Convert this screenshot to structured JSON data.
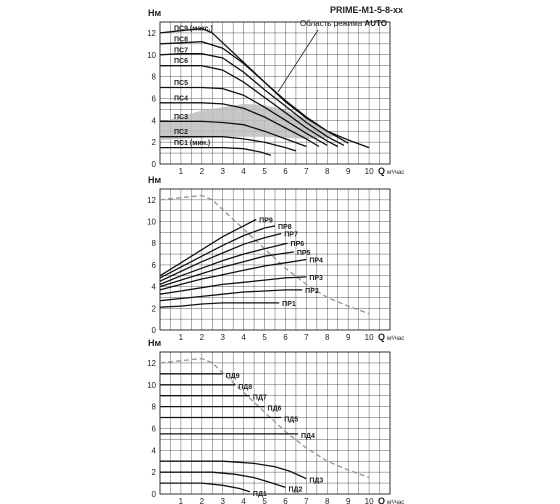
{
  "header": {
    "model": "PRIME-M1-5-8-xx",
    "mode_text": "Область режима ",
    "mode_word": "AUTO"
  },
  "chart_data": [
    {
      "type": "line",
      "ylabel": "Hм",
      "xlabel": "Q",
      "xunit": "м³/час",
      "xlim": [
        0,
        11
      ],
      "ylim": [
        0,
        13
      ],
      "xticks": [
        1,
        2,
        3,
        4,
        5,
        6,
        7,
        8,
        9,
        10
      ],
      "yticks": [
        0,
        2,
        4,
        6,
        8,
        10,
        12
      ],
      "grid": true,
      "max_curve": {
        "x": [
          0,
          1,
          2,
          2.5,
          3,
          4,
          5,
          6,
          7,
          8,
          9,
          10
        ],
        "y": [
          12,
          12.2,
          12.4,
          12,
          11.1,
          9.3,
          7.5,
          5.7,
          4.2,
          3.0,
          2.2,
          1.5
        ]
      },
      "auto_region": {
        "upper": {
          "x": [
            0,
            2,
            3,
            4,
            5,
            6,
            7,
            8,
            8.5
          ],
          "y": [
            3.8,
            4.9,
            5.2,
            5.5,
            5.4,
            4.9,
            4.2,
            3.1,
            2.6
          ]
        },
        "lower": {
          "x": [
            0,
            2,
            3,
            4,
            5,
            6,
            7,
            8,
            8.5
          ],
          "y": [
            2.2,
            2.4,
            2.5,
            2.5,
            2.5,
            2.4,
            2.3,
            2.4,
            2.6
          ]
        }
      },
      "series": [
        {
          "name": "ПС9 (макс.)",
          "x": [
            0,
            1,
            2,
            2.5,
            3,
            4,
            5,
            6,
            7,
            8,
            9,
            10
          ],
          "y": [
            12,
            12.2,
            12.4,
            12,
            11.1,
            9.3,
            7.5,
            5.7,
            4.2,
            3.0,
            2.2,
            1.5
          ]
        },
        {
          "name": "ПС8",
          "x": [
            0,
            1,
            2,
            3,
            4,
            5,
            6,
            7,
            8,
            9
          ],
          "y": [
            11,
            11.1,
            11.2,
            10.6,
            9.2,
            7.5,
            5.8,
            4.3,
            3.0,
            1.9
          ]
        },
        {
          "name": "ПС7",
          "x": [
            0,
            1,
            2,
            3,
            4,
            5,
            6,
            7,
            8,
            8.8
          ],
          "y": [
            10,
            10.1,
            10.1,
            9.7,
            8.4,
            6.8,
            5.3,
            3.8,
            2.5,
            1.7
          ]
        },
        {
          "name": "ПС6",
          "x": [
            0,
            1,
            2,
            3,
            4,
            5,
            6,
            7,
            8,
            8.5
          ],
          "y": [
            9,
            9.0,
            9.0,
            8.6,
            7.5,
            6.1,
            4.7,
            3.3,
            2.1,
            1.6
          ]
        },
        {
          "name": "ПС5",
          "x": [
            0,
            1,
            2,
            3,
            4,
            5,
            6,
            7,
            8
          ],
          "y": [
            7,
            7.0,
            7.0,
            6.9,
            6.3,
            5.2,
            4.0,
            2.8,
            1.7
          ]
        },
        {
          "name": "ПС4",
          "x": [
            0,
            1,
            2,
            3,
            4,
            5,
            6,
            7,
            7.6
          ],
          "y": [
            5.6,
            5.6,
            5.6,
            5.5,
            5.1,
            4.3,
            3.3,
            2.3,
            1.6
          ]
        },
        {
          "name": "ПС3",
          "x": [
            0,
            1,
            2,
            3,
            4,
            5,
            6,
            7
          ],
          "y": [
            3.9,
            3.9,
            3.9,
            3.8,
            3.6,
            3.0,
            2.3,
            1.6
          ]
        },
        {
          "name": "ПС2",
          "x": [
            0,
            1,
            2,
            3,
            4,
            5,
            6,
            6.5
          ],
          "y": [
            2.5,
            2.5,
            2.5,
            2.5,
            2.3,
            2.0,
            1.5,
            1.2
          ]
        },
        {
          "name": "ПС1 (мин.)",
          "x": [
            0,
            1,
            2,
            3,
            4,
            4.8,
            5.3
          ],
          "y": [
            1.5,
            1.5,
            1.5,
            1.5,
            1.4,
            1.1,
            0.8
          ]
        }
      ]
    },
    {
      "type": "line",
      "ylabel": "Hм",
      "xlabel": "Q",
      "xunit": "м³/час",
      "xlim": [
        0,
        11
      ],
      "ylim": [
        0,
        13
      ],
      "xticks": [
        1,
        2,
        3,
        4,
        5,
        6,
        7,
        8,
        9,
        10
      ],
      "yticks": [
        0,
        2,
        4,
        6,
        8,
        10,
        12
      ],
      "grid": true,
      "max_curve": {
        "x": [
          0,
          1,
          2,
          2.5,
          3,
          4,
          5,
          6,
          7,
          8,
          9,
          10
        ],
        "y": [
          12,
          12.2,
          12.4,
          12,
          11.1,
          9.3,
          7.5,
          5.7,
          4.2,
          3.0,
          2.2,
          1.5
        ]
      },
      "series": [
        {
          "name": "ПР9",
          "x": [
            0,
            1,
            2,
            3,
            4,
            4.6
          ],
          "y": [
            5.0,
            6.2,
            7.4,
            8.6,
            9.6,
            10.2
          ]
        },
        {
          "name": "ПР8",
          "x": [
            0,
            1,
            2,
            3,
            4,
            5,
            5.5
          ],
          "y": [
            4.8,
            5.8,
            6.8,
            7.8,
            8.7,
            9.4,
            9.6
          ]
        },
        {
          "name": "ПР7",
          "x": [
            0,
            1,
            2,
            3,
            4,
            5,
            5.8
          ],
          "y": [
            4.5,
            5.4,
            6.3,
            7.1,
            7.9,
            8.5,
            8.9
          ]
        },
        {
          "name": "ПР6",
          "x": [
            0,
            1,
            2,
            3,
            4,
            5,
            6.1
          ],
          "y": [
            4.2,
            5.0,
            5.7,
            6.4,
            7.0,
            7.5,
            8.0
          ]
        },
        {
          "name": "ПР5",
          "x": [
            0,
            1,
            2,
            3,
            4,
            5,
            6.4
          ],
          "y": [
            4.0,
            4.6,
            5.2,
            5.8,
            6.3,
            6.8,
            7.2
          ]
        },
        {
          "name": "ПР4",
          "x": [
            0,
            1,
            2,
            3,
            4,
            5,
            6,
            7
          ],
          "y": [
            3.7,
            4.2,
            4.7,
            5.1,
            5.5,
            5.9,
            6.2,
            6.5
          ]
        },
        {
          "name": "ПР3",
          "x": [
            0,
            1,
            2,
            3,
            4,
            5,
            6,
            7
          ],
          "y": [
            3.3,
            3.6,
            3.9,
            4.2,
            4.4,
            4.6,
            4.8,
            4.9
          ]
        },
        {
          "name": "ПР2",
          "x": [
            0,
            1,
            2,
            3,
            4,
            5,
            6,
            6.8
          ],
          "y": [
            2.7,
            2.9,
            3.1,
            3.3,
            3.5,
            3.6,
            3.7,
            3.7
          ]
        },
        {
          "name": "ПР1",
          "x": [
            0,
            1,
            2,
            3,
            4,
            5,
            5.7
          ],
          "y": [
            2.1,
            2.2,
            2.4,
            2.5,
            2.5,
            2.5,
            2.5
          ]
        }
      ]
    },
    {
      "type": "line",
      "ylabel": "Hм",
      "xlabel": "Q",
      "xunit": "м³/час",
      "xlim": [
        0,
        11
      ],
      "ylim": [
        0,
        13
      ],
      "xticks": [
        1,
        2,
        3,
        4,
        5,
        6,
        7,
        8,
        9,
        10
      ],
      "yticks": [
        0,
        2,
        4,
        6,
        8,
        10,
        12
      ],
      "grid": true,
      "max_curve": {
        "x": [
          0,
          1,
          2,
          2.5,
          3,
          4,
          5,
          6,
          7,
          8,
          9,
          10
        ],
        "y": [
          12,
          12.2,
          12.4,
          12,
          11.1,
          9.3,
          7.5,
          5.7,
          4.2,
          3.0,
          2.2,
          1.5
        ]
      },
      "series": [
        {
          "name": "ПД9",
          "x": [
            0,
            2.0,
            3.0
          ],
          "y": [
            11,
            11,
            11
          ]
        },
        {
          "name": "ПД8",
          "x": [
            0,
            3.0,
            3.6
          ],
          "y": [
            10,
            10,
            10
          ]
        },
        {
          "name": "ПД7",
          "x": [
            0,
            3.6,
            4.3
          ],
          "y": [
            9,
            9,
            9
          ]
        },
        {
          "name": "ПД6",
          "x": [
            0,
            4.2,
            5.0
          ],
          "y": [
            8,
            8,
            8
          ]
        },
        {
          "name": "ПД5",
          "x": [
            0,
            5.0,
            5.8
          ],
          "y": [
            7,
            7,
            7
          ]
        },
        {
          "name": "ПД4",
          "x": [
            0,
            5.8,
            6.6
          ],
          "y": [
            5.5,
            5.5,
            5.5
          ]
        },
        {
          "name": "ПД3",
          "x": [
            0,
            3.0,
            4.5,
            5.5,
            6.2,
            7.0
          ],
          "y": [
            3.0,
            3.0,
            2.8,
            2.5,
            2.1,
            1.4
          ]
        },
        {
          "name": "ПД2",
          "x": [
            0,
            2.5,
            3.6,
            4.5,
            5.2,
            6.0
          ],
          "y": [
            2.0,
            2.0,
            1.8,
            1.5,
            1.1,
            0.6
          ]
        },
        {
          "name": "ПД1",
          "x": [
            0,
            2.0,
            3.0,
            3.8,
            4.3
          ],
          "y": [
            1.0,
            1.0,
            0.8,
            0.5,
            0.2
          ]
        }
      ]
    }
  ]
}
